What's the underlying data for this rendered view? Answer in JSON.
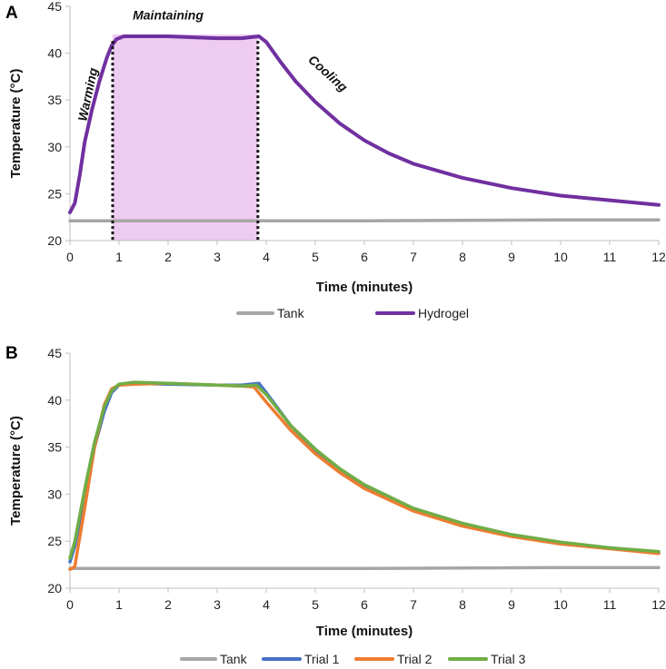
{
  "colors": {
    "tank": "#a6a6a6",
    "hydrogel": "#7030a0",
    "trial1": "#4472c4",
    "trial2": "#ed7d31",
    "trial3": "#70ad47",
    "shade": "#eecbf0",
    "axis": "#bfbfbf"
  },
  "chart_data": [
    {
      "panel": "A",
      "type": "line",
      "xlabel": "Time (minutes)",
      "ylabel": "Temperature (°C)",
      "xlim": [
        0,
        12
      ],
      "ylim": [
        20,
        45
      ],
      "xticks": [
        "0",
        "1",
        "2",
        "3",
        "4",
        "5",
        "6",
        "7",
        "8",
        "9",
        "10",
        "11",
        "12"
      ],
      "yticks": [
        "20",
        "25",
        "30",
        "35",
        "40",
        "45"
      ],
      "shaded_region": {
        "x_start": 0.87,
        "x_end": 3.83
      },
      "phase_markers": [
        0.87,
        3.83
      ],
      "annotations": [
        {
          "text": "Warming",
          "x": 0.45,
          "y": 35.5,
          "rotate": -78
        },
        {
          "text": "Maintaining",
          "x": 2.0,
          "y": 43.6,
          "rotate": 0
        },
        {
          "text": "Cooling",
          "x": 5.2,
          "y": 37.5,
          "rotate": 42
        }
      ],
      "series": [
        {
          "name": "Tank",
          "color_key": "tank",
          "x": [
            0,
            2,
            4,
            6,
            8,
            10,
            12
          ],
          "y": [
            22.1,
            22.1,
            22.1,
            22.1,
            22.15,
            22.2,
            22.2
          ]
        },
        {
          "name": "Hydrogel",
          "color_key": "hydrogel",
          "x": [
            0,
            0.1,
            0.2,
            0.3,
            0.45,
            0.6,
            0.75,
            0.85,
            0.95,
            1.1,
            1.5,
            2.0,
            2.5,
            3.0,
            3.5,
            3.85,
            4.0,
            4.3,
            4.6,
            5.0,
            5.5,
            6.0,
            6.5,
            7.0,
            8.0,
            9.0,
            10.0,
            11.0,
            12.0
          ],
          "y": [
            23.0,
            24.0,
            27.0,
            30.5,
            34.0,
            37.0,
            39.5,
            40.8,
            41.5,
            41.8,
            41.8,
            41.8,
            41.7,
            41.6,
            41.6,
            41.8,
            41.2,
            39.0,
            37.0,
            34.8,
            32.5,
            30.7,
            29.3,
            28.2,
            26.7,
            25.6,
            24.8,
            24.3,
            23.8
          ]
        }
      ],
      "legend": [
        "Tank",
        "Hydrogel"
      ]
    },
    {
      "panel": "B",
      "type": "line",
      "xlabel": "Time (minutes)",
      "ylabel": "Temperature (°C)",
      "xlim": [
        0,
        12
      ],
      "ylim": [
        20,
        45
      ],
      "xticks": [
        "0",
        "1",
        "2",
        "3",
        "4",
        "5",
        "6",
        "7",
        "8",
        "9",
        "10",
        "11",
        "12"
      ],
      "yticks": [
        "20",
        "25",
        "30",
        "35",
        "40",
        "45"
      ],
      "series": [
        {
          "name": "Tank",
          "color_key": "tank",
          "x": [
            0,
            2,
            4,
            6,
            8,
            10,
            12
          ],
          "y": [
            22.1,
            22.1,
            22.1,
            22.1,
            22.15,
            22.2,
            22.2
          ]
        },
        {
          "name": "Trial 1",
          "color_key": "trial1",
          "x": [
            0,
            0.1,
            0.3,
            0.5,
            0.7,
            0.85,
            1.0,
            1.3,
            2.0,
            3.0,
            3.5,
            3.85,
            4.0,
            4.5,
            5.0,
            5.5,
            6.0,
            7.0,
            8.0,
            9.0,
            10.0,
            11.0,
            12.0
          ],
          "y": [
            22.8,
            24.5,
            30.0,
            35.0,
            38.8,
            40.8,
            41.6,
            41.8,
            41.7,
            41.6,
            41.6,
            41.8,
            40.8,
            37.3,
            34.6,
            32.5,
            30.8,
            28.3,
            26.7,
            25.6,
            24.8,
            24.3,
            23.8
          ]
        },
        {
          "name": "Trial 2",
          "color_key": "trial2",
          "x": [
            0,
            0.1,
            0.12,
            0.3,
            0.5,
            0.7,
            0.85,
            1.0,
            1.3,
            2.0,
            3.0,
            3.5,
            3.75,
            4.0,
            4.5,
            5.0,
            5.5,
            6.0,
            7.0,
            8.0,
            9.0,
            10.0,
            11.0,
            12.0
          ],
          "y": [
            22.0,
            22.3,
            23.0,
            28.5,
            35.0,
            39.5,
            41.2,
            41.6,
            41.7,
            41.8,
            41.6,
            41.5,
            41.4,
            39.8,
            36.8,
            34.3,
            32.3,
            30.6,
            28.2,
            26.6,
            25.5,
            24.7,
            24.2,
            23.7
          ]
        },
        {
          "name": "Trial 3",
          "color_key": "trial3",
          "x": [
            0,
            0.1,
            0.3,
            0.5,
            0.7,
            0.85,
            1.0,
            1.3,
            2.0,
            3.0,
            3.5,
            3.8,
            4.0,
            4.5,
            5.0,
            5.5,
            6.0,
            7.0,
            8.0,
            9.0,
            10.0,
            11.0,
            12.0
          ],
          "y": [
            23.2,
            25.0,
            30.5,
            35.5,
            39.3,
            41.0,
            41.7,
            41.9,
            41.8,
            41.6,
            41.5,
            41.6,
            40.6,
            37.3,
            34.8,
            32.7,
            31.0,
            28.5,
            26.9,
            25.7,
            24.9,
            24.3,
            23.9
          ]
        }
      ],
      "legend": [
        "Tank",
        "Trial 1",
        "Trial 2",
        "Trial 3"
      ]
    }
  ]
}
